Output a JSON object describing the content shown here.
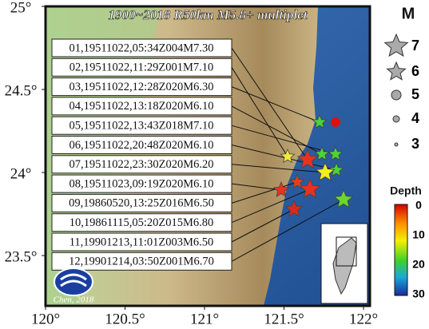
{
  "map": {
    "title": "1900~2018 R50km M5.8+ multiplet",
    "events": [
      "01,19511022,05:34Z004M7.30",
      "02,19511022,11:29Z001M7.10",
      "03,19511022,12:28Z020M6.30",
      "04,19511022,13:18Z020M6.10",
      "05,19511022,13:43Z018M7.10",
      "06,19511022,20:48Z020M6.10",
      "07,19511022,23:30Z020M6.20",
      "08,19511023,09:19Z020M6.10",
      "09,19860520,13:25Z016M6.50",
      "10,19861115,05:20Z015M6.80",
      "11,19901213,11:01Z003M6.50",
      "12,19901214,03:50Z001M6.70"
    ],
    "x_ticks": [
      "120°",
      "120.5°",
      "121°",
      "121.5°",
      "122°"
    ],
    "y_ticks": [
      "25°",
      "24.5°",
      "24°",
      "23.5°"
    ],
    "legend": {
      "magnitude_title": "M",
      "magnitudes": [
        "7",
        "6",
        "5",
        "4",
        "3"
      ],
      "depth_title": "Depth",
      "depths": [
        "0",
        "10",
        "20",
        "30"
      ]
    },
    "credit": "Chen, 2018"
  }
}
